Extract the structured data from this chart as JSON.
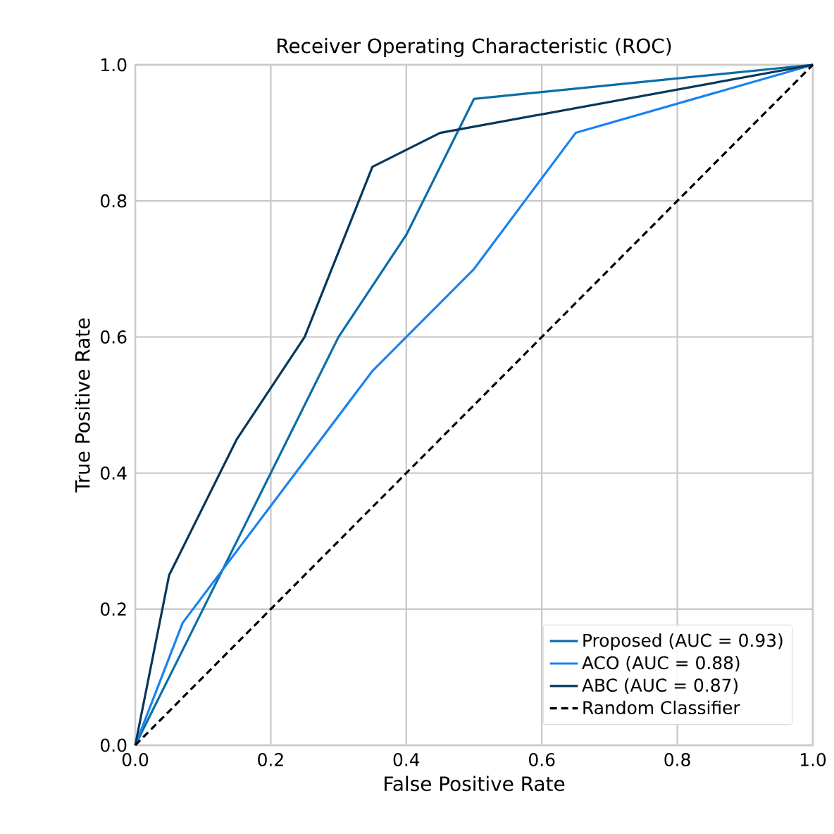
{
  "chart_data": {
    "type": "line",
    "title": "Receiver Operating Characteristic (ROC)",
    "xlabel": "False Positive Rate",
    "ylabel": "True Positive Rate",
    "xlim": [
      0,
      1
    ],
    "ylim": [
      0,
      1
    ],
    "xticks": [
      {
        "value": 0,
        "label": "0.0"
      },
      0.2,
      0.4,
      0.6,
      0.8,
      {
        "value": 1,
        "label": "1.0"
      }
    ],
    "yticks": [
      {
        "value": 0,
        "label": "0.0"
      },
      0.2,
      0.4,
      0.6,
      0.8,
      {
        "value": 1,
        "label": "1.0"
      }
    ],
    "grid": true,
    "legend": "bottom right",
    "line_style": "solid",
    "series": [
      {
        "name": "Proposed (AUC = 0.93)",
        "color": "#0a6ea8",
        "x": [
          0,
          0.3,
          0.4,
          0.5,
          1
        ],
        "values": [
          0,
          0.6,
          0.75,
          0.95,
          1
        ]
      },
      {
        "name": "ACO (AUC = 0.88)",
        "color": "#1a82f0",
        "x": [
          0,
          0.07,
          0.35,
          0.5,
          0.65,
          1
        ],
        "values": [
          0,
          0.18,
          0.55,
          0.7,
          0.9,
          1
        ]
      },
      {
        "name": "ABC (AUC = 0.87)",
        "color": "#07375a",
        "x": [
          0,
          0.05,
          0.15,
          0.25,
          0.35,
          0.45,
          1
        ],
        "values": [
          0,
          0.25,
          0.45,
          0.6,
          0.85,
          0.9,
          1
        ]
      },
      {
        "name": "Random Classifier",
        "color": "#000000",
        "line_style": "dashed",
        "x": [
          0,
          1
        ],
        "values": [
          0,
          1
        ]
      }
    ]
  }
}
